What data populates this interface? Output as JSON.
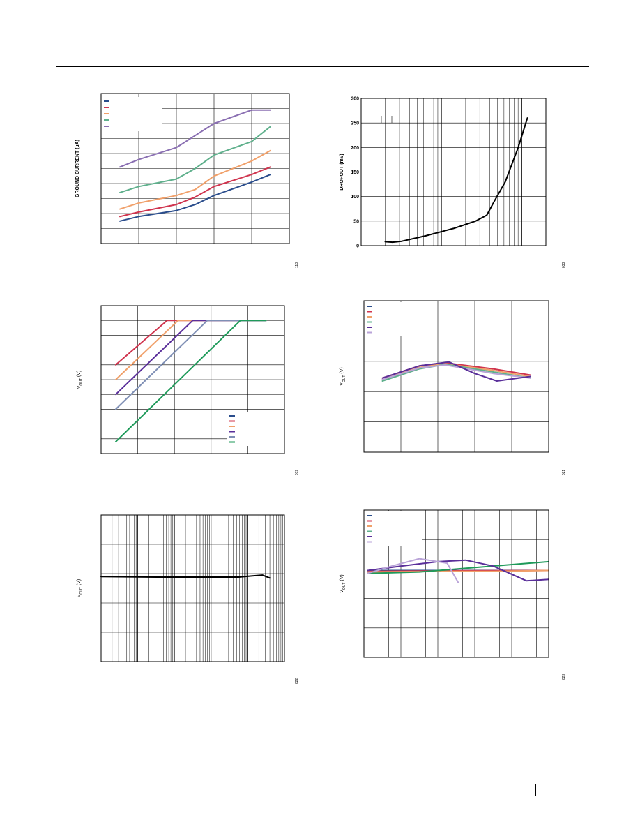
{
  "page": {
    "figure_ids": [
      "113",
      "033",
      "019",
      "021",
      "022",
      "023"
    ]
  },
  "colors": {
    "navy": "#2a4d8c",
    "crimson": "#d0344e",
    "orange": "#f0a06a",
    "teal": "#5fb08c",
    "purple": "#8a6fb2",
    "dark_purple": "#5a2f9a",
    "slate": "#7f8fb5",
    "green": "#1f9a5a",
    "lavender": "#b9a3d8",
    "black": "#000000"
  },
  "chart_data": [
    {
      "id": "chart1",
      "type": "line",
      "ylabel": "GROUND CURRENT (µA)",
      "xlim": [
        0,
        5
      ],
      "ylim": [
        0,
        10
      ],
      "grid": true,
      "legend_position": "top-left",
      "series": [
        {
          "color": "navy",
          "x": [
            0.5,
            1,
            2,
            2.5,
            3,
            4,
            4.5
          ],
          "y": [
            1.5,
            1.8,
            2.2,
            2.6,
            3.2,
            4.1,
            4.6
          ]
        },
        {
          "color": "crimson",
          "x": [
            0.5,
            1,
            2,
            2.5,
            3,
            4,
            4.5
          ],
          "y": [
            1.8,
            2.1,
            2.6,
            3.1,
            3.8,
            4.6,
            5.1
          ]
        },
        {
          "color": "orange",
          "x": [
            0.5,
            1,
            2,
            2.5,
            3,
            4,
            4.5
          ],
          "y": [
            2.3,
            2.7,
            3.2,
            3.6,
            4.5,
            5.5,
            6.2
          ]
        },
        {
          "color": "teal",
          "x": [
            0.5,
            1,
            2,
            2.5,
            3,
            4,
            4.5
          ],
          "y": [
            3.4,
            3.8,
            4.3,
            5.0,
            5.9,
            6.8,
            7.8
          ]
        },
        {
          "color": "purple",
          "x": [
            0.5,
            1,
            2,
            2.5,
            3,
            4,
            4.5
          ],
          "y": [
            5.1,
            5.6,
            6.4,
            7.2,
            8.0,
            8.9,
            8.9
          ]
        }
      ]
    },
    {
      "id": "chart2",
      "type": "line",
      "ylabel": "DROPOUT (mV)",
      "y_ticks": [
        "0",
        "50",
        "100",
        "150",
        "200",
        "250",
        "300"
      ],
      "xscale": "log",
      "xlim_decades": 2.3,
      "ylim": [
        0,
        300
      ],
      "grid": true,
      "series": [
        {
          "color": "black",
          "x_frac": [
            0.13,
            0.17,
            0.22,
            0.35,
            0.5,
            0.62,
            0.68,
            0.72,
            0.78,
            0.85,
            0.9
          ],
          "y": [
            8,
            7,
            9,
            20,
            35,
            50,
            62,
            90,
            130,
            200,
            260
          ]
        }
      ]
    },
    {
      "id": "chart3",
      "type": "line",
      "ylabel_main": "V",
      "ylabel_sub": "OUT",
      "ylabel_unit": " (V)",
      "xlim": [
        0,
        5
      ],
      "ylim": [
        0,
        10
      ],
      "grid": true,
      "legend_position": "bottom-right",
      "series": [
        {
          "color": "crimson",
          "x": [
            0.4,
            1.8,
            4.5
          ],
          "y": [
            6.0,
            9.0,
            9.0
          ]
        },
        {
          "color": "orange",
          "x": [
            0.4,
            2.1,
            4.5
          ],
          "y": [
            5.0,
            9.0,
            9.0
          ]
        },
        {
          "color": "dark_purple",
          "x": [
            0.4,
            2.5,
            4.5
          ],
          "y": [
            4.0,
            9.0,
            9.0
          ]
        },
        {
          "color": "slate",
          "x": [
            0.4,
            2.9,
            4.5
          ],
          "y": [
            3.0,
            9.0,
            9.0
          ]
        },
        {
          "color": "green",
          "x": [
            0.4,
            3.8,
            4.5
          ],
          "y": [
            0.8,
            9.0,
            9.0
          ]
        }
      ]
    },
    {
      "id": "chart4",
      "type": "line",
      "ylabel_main": "V",
      "ylabel_sub": "OUT",
      "ylabel_unit": " (V)",
      "xlim": [
        0,
        5
      ],
      "ylim": [
        0,
        5
      ],
      "grid": true,
      "legend_position": "top-left",
      "series": [
        {
          "color": "crimson",
          "x": [
            0.5,
            1.5,
            2.2,
            3.5,
            4.5
          ],
          "y": [
            2.45,
            2.85,
            2.95,
            2.75,
            2.55
          ]
        },
        {
          "color": "orange",
          "x": [
            0.5,
            1.5,
            2.2,
            3.5,
            4.5
          ],
          "y": [
            2.4,
            2.8,
            2.92,
            2.7,
            2.5
          ]
        },
        {
          "color": "teal",
          "x": [
            0.5,
            1.5,
            2.2,
            3.5,
            4.5
          ],
          "y": [
            2.35,
            2.75,
            2.9,
            2.65,
            2.45
          ]
        },
        {
          "color": "lavender",
          "x": [
            0.5,
            1.5,
            2.2,
            3.5,
            4.5
          ],
          "y": [
            2.4,
            2.78,
            2.88,
            2.6,
            2.45
          ]
        },
        {
          "color": "dark_purple",
          "x": [
            0.5,
            1.5,
            2.3,
            3.0,
            3.6,
            4.5
          ],
          "y": [
            2.45,
            2.85,
            2.98,
            2.6,
            2.35,
            2.5
          ]
        }
      ]
    },
    {
      "id": "chart5",
      "type": "line",
      "ylabel_main": "V",
      "ylabel_sub": "OUT",
      "ylabel_unit": " (V)",
      "xscale": "log",
      "xlim_decades": 5,
      "ylim": [
        0,
        5
      ],
      "grid": true,
      "series": [
        {
          "color": "black",
          "x_frac": [
            0,
            0.3,
            0.6,
            0.75,
            0.82,
            0.88,
            0.92
          ],
          "y": [
            2.9,
            2.88,
            2.88,
            2.88,
            2.92,
            2.95,
            2.85
          ]
        }
      ]
    },
    {
      "id": "chart6",
      "type": "line",
      "ylabel_main": "V",
      "ylabel_sub": "OUT",
      "ylabel_unit": " (V)",
      "xlim": [
        0,
        10
      ],
      "ylim": [
        0,
        5
      ],
      "grid": true,
      "legend_position": "top-left",
      "series": [
        {
          "color": "navy",
          "x": [
            0.2,
            4,
            10
          ],
          "y": [
            2.95,
            2.95,
            2.95
          ]
        },
        {
          "color": "crimson",
          "x": [
            0.2,
            5,
            10
          ],
          "y": [
            2.92,
            2.94,
            2.95
          ]
        },
        {
          "color": "orange",
          "x": [
            0.2,
            5,
            7,
            10
          ],
          "y": [
            2.9,
            2.92,
            2.92,
            2.95
          ]
        },
        {
          "color": "green",
          "x": [
            0.2,
            3,
            6,
            10
          ],
          "y": [
            2.85,
            2.9,
            3.05,
            3.25
          ]
        },
        {
          "color": "dark_purple",
          "x": [
            0.2,
            2,
            4,
            5.5,
            7,
            8.8,
            10
          ],
          "y": [
            2.95,
            3.1,
            3.25,
            3.3,
            3.1,
            2.6,
            2.65
          ]
        },
        {
          "color": "lavender",
          "x": [
            0.2,
            1.5,
            3,
            4.5,
            5.1
          ],
          "y": [
            2.85,
            3.1,
            3.35,
            3.2,
            2.55
          ]
        }
      ]
    }
  ]
}
